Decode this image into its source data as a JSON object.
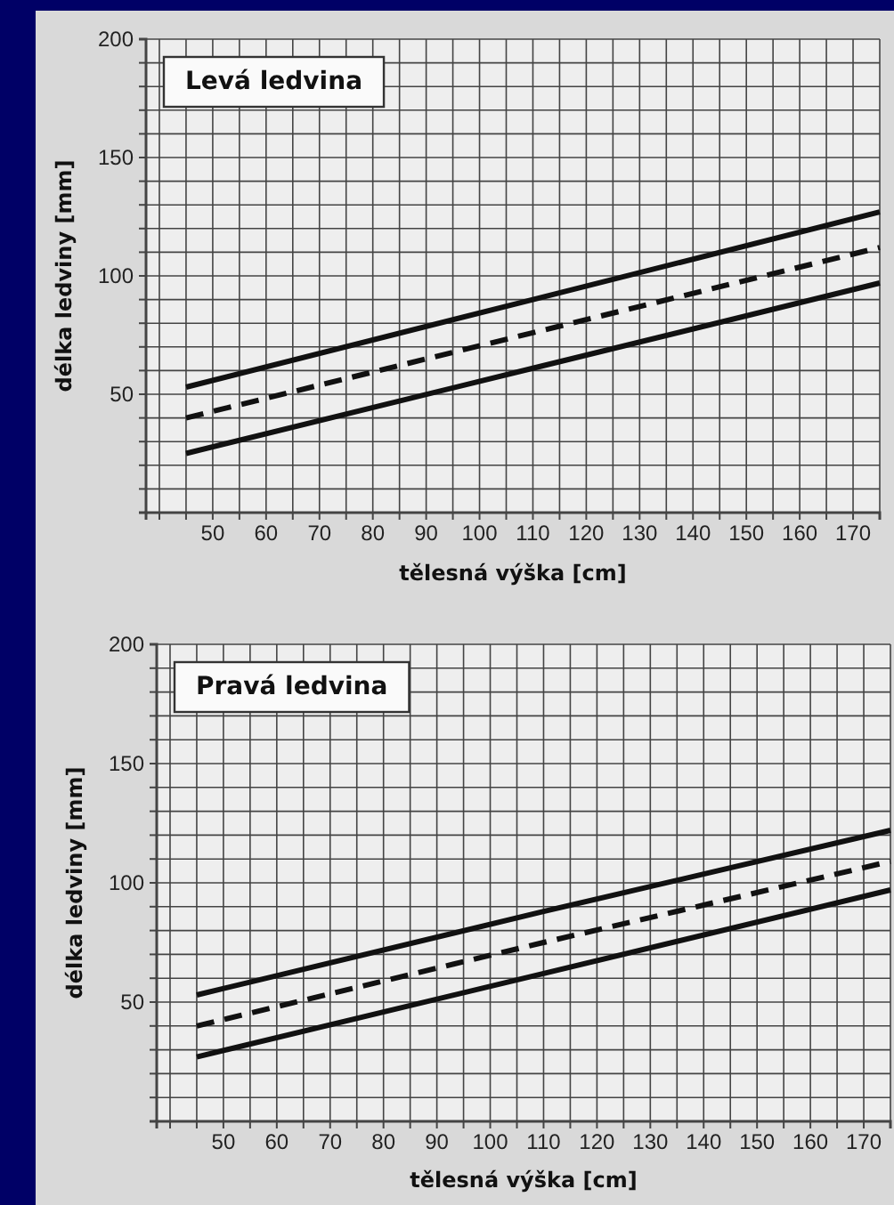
{
  "chart_data": [
    {
      "type": "line",
      "title": "Levá ledvina",
      "xlabel": "tělesná výška [cm]",
      "ylabel": "délka ledviny [mm]",
      "x": [
        45,
        110,
        175
      ],
      "series": [
        {
          "color": "#111111",
          "values": [
            53,
            90,
            127
          ],
          "line_style": "solid"
        },
        {
          "color": "#111111",
          "values": [
            40,
            76,
            112
          ],
          "line_style": "dashed"
        },
        {
          "color": "#111111",
          "values": [
            25,
            61,
            97
          ],
          "line_style": "solid"
        }
      ],
      "xlim": [
        37.5,
        175
      ],
      "ylim": [
        0,
        200
      ],
      "xticks": [
        {
          "value": 40,
          "label": null
        },
        {
          "value": 45,
          "label": null
        },
        50,
        {
          "value": 55,
          "label": null
        },
        60,
        {
          "value": 65,
          "label": null
        },
        70,
        {
          "value": 75,
          "label": null
        },
        80,
        {
          "value": 85,
          "label": null
        },
        90,
        {
          "value": 95,
          "label": null
        },
        100,
        {
          "value": 105,
          "label": null
        },
        110,
        {
          "value": 115,
          "label": null
        },
        120,
        {
          "value": 125,
          "label": null
        },
        130,
        {
          "value": 135,
          "label": null
        },
        140,
        {
          "value": 145,
          "label": null
        },
        150,
        {
          "value": 155,
          "label": null
        },
        160,
        {
          "value": 165,
          "label": null
        },
        170,
        {
          "value": 175,
          "label": null
        }
      ],
      "yticks": [
        {
          "value": 0,
          "label": null
        },
        {
          "value": 10,
          "label": null
        },
        {
          "value": 20,
          "label": null
        },
        {
          "value": 30,
          "label": null
        },
        {
          "value": 40,
          "label": null
        },
        50,
        {
          "value": 60,
          "label": null
        },
        {
          "value": 70,
          "label": null
        },
        {
          "value": 80,
          "label": null
        },
        {
          "value": 90,
          "label": null
        },
        100,
        {
          "value": 110,
          "label": null
        },
        {
          "value": 120,
          "label": null
        },
        {
          "value": 130,
          "label": null
        },
        {
          "value": 140,
          "label": null
        },
        150,
        {
          "value": 160,
          "label": null
        },
        {
          "value": 170,
          "label": null
        },
        {
          "value": 180,
          "label": null
        },
        {
          "value": 190,
          "label": null
        },
        200
      ],
      "grid": true,
      "marker": "none"
    },
    {
      "type": "line",
      "title": "Pravá ledvina",
      "xlabel": "tělesná výška [cm]",
      "ylabel": "délka ledviny [mm]",
      "x": [
        45,
        110,
        175
      ],
      "series": [
        {
          "color": "#111111",
          "values": [
            53,
            88,
            122
          ],
          "line_style": "solid"
        },
        {
          "color": "#111111",
          "values": [
            40,
            75,
            109
          ],
          "line_style": "dashed"
        },
        {
          "color": "#111111",
          "values": [
            27,
            62,
            97
          ],
          "line_style": "solid"
        }
      ],
      "xlim": [
        37.5,
        175
      ],
      "ylim": [
        0,
        200
      ],
      "xticks": [
        {
          "value": 40,
          "label": null
        },
        {
          "value": 45,
          "label": null
        },
        50,
        {
          "value": 55,
          "label": null
        },
        60,
        {
          "value": 65,
          "label": null
        },
        70,
        {
          "value": 75,
          "label": null
        },
        80,
        {
          "value": 85,
          "label": null
        },
        90,
        {
          "value": 95,
          "label": null
        },
        100,
        {
          "value": 105,
          "label": null
        },
        110,
        {
          "value": 115,
          "label": null
        },
        120,
        {
          "value": 125,
          "label": null
        },
        130,
        {
          "value": 135,
          "label": null
        },
        140,
        {
          "value": 145,
          "label": null
        },
        150,
        {
          "value": 155,
          "label": null
        },
        160,
        {
          "value": 165,
          "label": null
        },
        170,
        {
          "value": 175,
          "label": null
        }
      ],
      "yticks": [
        {
          "value": 0,
          "label": null
        },
        {
          "value": 10,
          "label": null
        },
        {
          "value": 20,
          "label": null
        },
        {
          "value": 30,
          "label": null
        },
        {
          "value": 40,
          "label": null
        },
        50,
        {
          "value": 60,
          "label": null
        },
        {
          "value": 70,
          "label": null
        },
        {
          "value": 80,
          "label": null
        },
        {
          "value": 90,
          "label": null
        },
        100,
        {
          "value": 110,
          "label": null
        },
        {
          "value": 120,
          "label": null
        },
        {
          "value": 130,
          "label": null
        },
        {
          "value": 140,
          "label": null
        },
        150,
        {
          "value": 160,
          "label": null
        },
        {
          "value": 170,
          "label": null
        },
        {
          "value": 180,
          "label": null
        },
        {
          "value": 190,
          "label": null
        },
        200
      ],
      "grid": true,
      "marker": "none"
    }
  ]
}
